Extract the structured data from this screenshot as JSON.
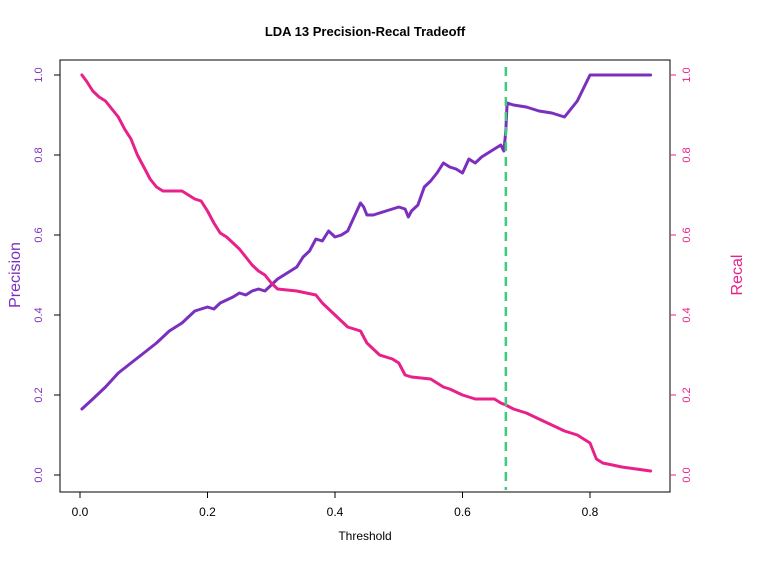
{
  "chart_data": {
    "type": "line",
    "title": "LDA 13 Precision-Recal Tradeoff",
    "xlabel": "Threshold",
    "ylabel_left": "Precision",
    "ylabel_right": "Recal",
    "xlim": [
      0,
      0.9
    ],
    "ylim": [
      0,
      1
    ],
    "x_ticks": [
      "0.0",
      "0.2",
      "0.4",
      "0.6",
      "0.8"
    ],
    "y_ticks_left": [
      "0.0",
      "0.2",
      "0.4",
      "0.6",
      "0.8",
      "1.0"
    ],
    "y_ticks_right": [
      "0.0",
      "0.2",
      "0.4",
      "0.6",
      "0.8",
      "1.0"
    ],
    "grid": false,
    "threshold_line": {
      "x": 0.668,
      "color": "#3CCB7F",
      "style": "dashed"
    },
    "colors": {
      "precision": "#7B2FBE",
      "recall": "#E8208A"
    },
    "series": [
      {
        "key": "precision",
        "axis": "left",
        "color": "#7B2FBE",
        "x": [
          0.003,
          0.02,
          0.04,
          0.06,
          0.08,
          0.1,
          0.12,
          0.14,
          0.16,
          0.18,
          0.2,
          0.21,
          0.22,
          0.24,
          0.25,
          0.26,
          0.27,
          0.28,
          0.29,
          0.3,
          0.31,
          0.32,
          0.33,
          0.34,
          0.35,
          0.36,
          0.37,
          0.38,
          0.39,
          0.4,
          0.41,
          0.42,
          0.43,
          0.44,
          0.445,
          0.45,
          0.46,
          0.47,
          0.48,
          0.49,
          0.5,
          0.51,
          0.515,
          0.52,
          0.53,
          0.54,
          0.55,
          0.56,
          0.57,
          0.58,
          0.59,
          0.6,
          0.61,
          0.62,
          0.63,
          0.64,
          0.65,
          0.66,
          0.665,
          0.668,
          0.67,
          0.68,
          0.7,
          0.72,
          0.74,
          0.76,
          0.78,
          0.8,
          0.85,
          0.895
        ],
        "y": [
          0.165,
          0.19,
          0.22,
          0.255,
          0.28,
          0.305,
          0.33,
          0.36,
          0.38,
          0.41,
          0.42,
          0.415,
          0.43,
          0.445,
          0.455,
          0.45,
          0.46,
          0.465,
          0.46,
          0.475,
          0.49,
          0.5,
          0.51,
          0.52,
          0.545,
          0.56,
          0.59,
          0.585,
          0.61,
          0.595,
          0.6,
          0.61,
          0.645,
          0.68,
          0.67,
          0.65,
          0.65,
          0.655,
          0.66,
          0.665,
          0.67,
          0.665,
          0.645,
          0.66,
          0.675,
          0.72,
          0.735,
          0.755,
          0.78,
          0.77,
          0.765,
          0.755,
          0.79,
          0.78,
          0.795,
          0.805,
          0.815,
          0.825,
          0.81,
          0.86,
          0.93,
          0.925,
          0.92,
          0.91,
          0.905,
          0.895,
          0.935,
          1.0,
          1.0,
          1.0
        ]
      },
      {
        "key": "recall",
        "axis": "right",
        "color": "#E8208A",
        "x": [
          0.003,
          0.01,
          0.02,
          0.03,
          0.04,
          0.05,
          0.06,
          0.07,
          0.08,
          0.09,
          0.1,
          0.11,
          0.12,
          0.13,
          0.16,
          0.18,
          0.19,
          0.2,
          0.21,
          0.22,
          0.23,
          0.24,
          0.25,
          0.26,
          0.27,
          0.28,
          0.29,
          0.3,
          0.31,
          0.34,
          0.37,
          0.38,
          0.4,
          0.42,
          0.44,
          0.45,
          0.47,
          0.49,
          0.5,
          0.51,
          0.52,
          0.55,
          0.56,
          0.57,
          0.58,
          0.6,
          0.62,
          0.65,
          0.66,
          0.668,
          0.68,
          0.7,
          0.72,
          0.74,
          0.76,
          0.78,
          0.79,
          0.8,
          0.81,
          0.82,
          0.85,
          0.895
        ],
        "y": [
          1.0,
          0.985,
          0.96,
          0.945,
          0.935,
          0.915,
          0.895,
          0.865,
          0.84,
          0.8,
          0.77,
          0.74,
          0.72,
          0.71,
          0.71,
          0.69,
          0.685,
          0.66,
          0.63,
          0.605,
          0.595,
          0.58,
          0.565,
          0.545,
          0.525,
          0.51,
          0.5,
          0.48,
          0.465,
          0.46,
          0.45,
          0.43,
          0.4,
          0.37,
          0.36,
          0.33,
          0.3,
          0.29,
          0.28,
          0.25,
          0.245,
          0.24,
          0.23,
          0.22,
          0.215,
          0.2,
          0.19,
          0.19,
          0.18,
          0.175,
          0.165,
          0.155,
          0.14,
          0.125,
          0.11,
          0.1,
          0.09,
          0.08,
          0.04,
          0.03,
          0.02,
          0.01
        ]
      }
    ]
  }
}
